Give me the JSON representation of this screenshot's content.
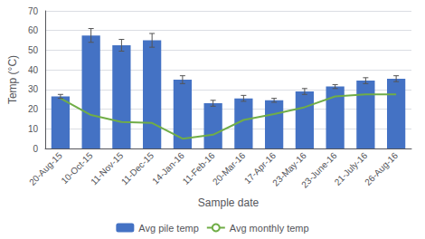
{
  "chart_data": {
    "type": "bar",
    "xlabel": "Sample date",
    "ylabel": "Temp (°C)",
    "categories": [
      "20-Aug-15",
      "10-Oct-15",
      "11-Nov-15",
      "11-Dec-15",
      "14-Jan-16",
      "11-Feb-16",
      "20-Mar-16",
      "17-Apr-16",
      "23-May-16",
      "23-June-16",
      "21-July-16",
      "26-Aug-16"
    ],
    "series": [
      {
        "name": "Avg pile temp",
        "type": "bar",
        "color": "#4472C4",
        "values": [
          26.5,
          57.5,
          52.5,
          55.0,
          35.0,
          23.0,
          25.5,
          24.5,
          29.0,
          31.5,
          34.5,
          35.5
        ],
        "errors": [
          1.0,
          3.5,
          3.0,
          3.5,
          2.0,
          1.5,
          1.5,
          1.0,
          1.5,
          1.0,
          1.5,
          1.5
        ]
      },
      {
        "name": "Avg monthly temp",
        "type": "line",
        "color": "#70AD47",
        "values": [
          25.5,
          17.0,
          13.5,
          13.0,
          5.0,
          7.0,
          14.5,
          17.5,
          21.0,
          26.5,
          27.5,
          27.5
        ]
      }
    ],
    "ylim": [
      0,
      70
    ],
    "yticks": [
      0,
      10,
      20,
      30,
      40,
      50,
      60,
      70
    ],
    "grid": true,
    "legend": "bottom"
  }
}
